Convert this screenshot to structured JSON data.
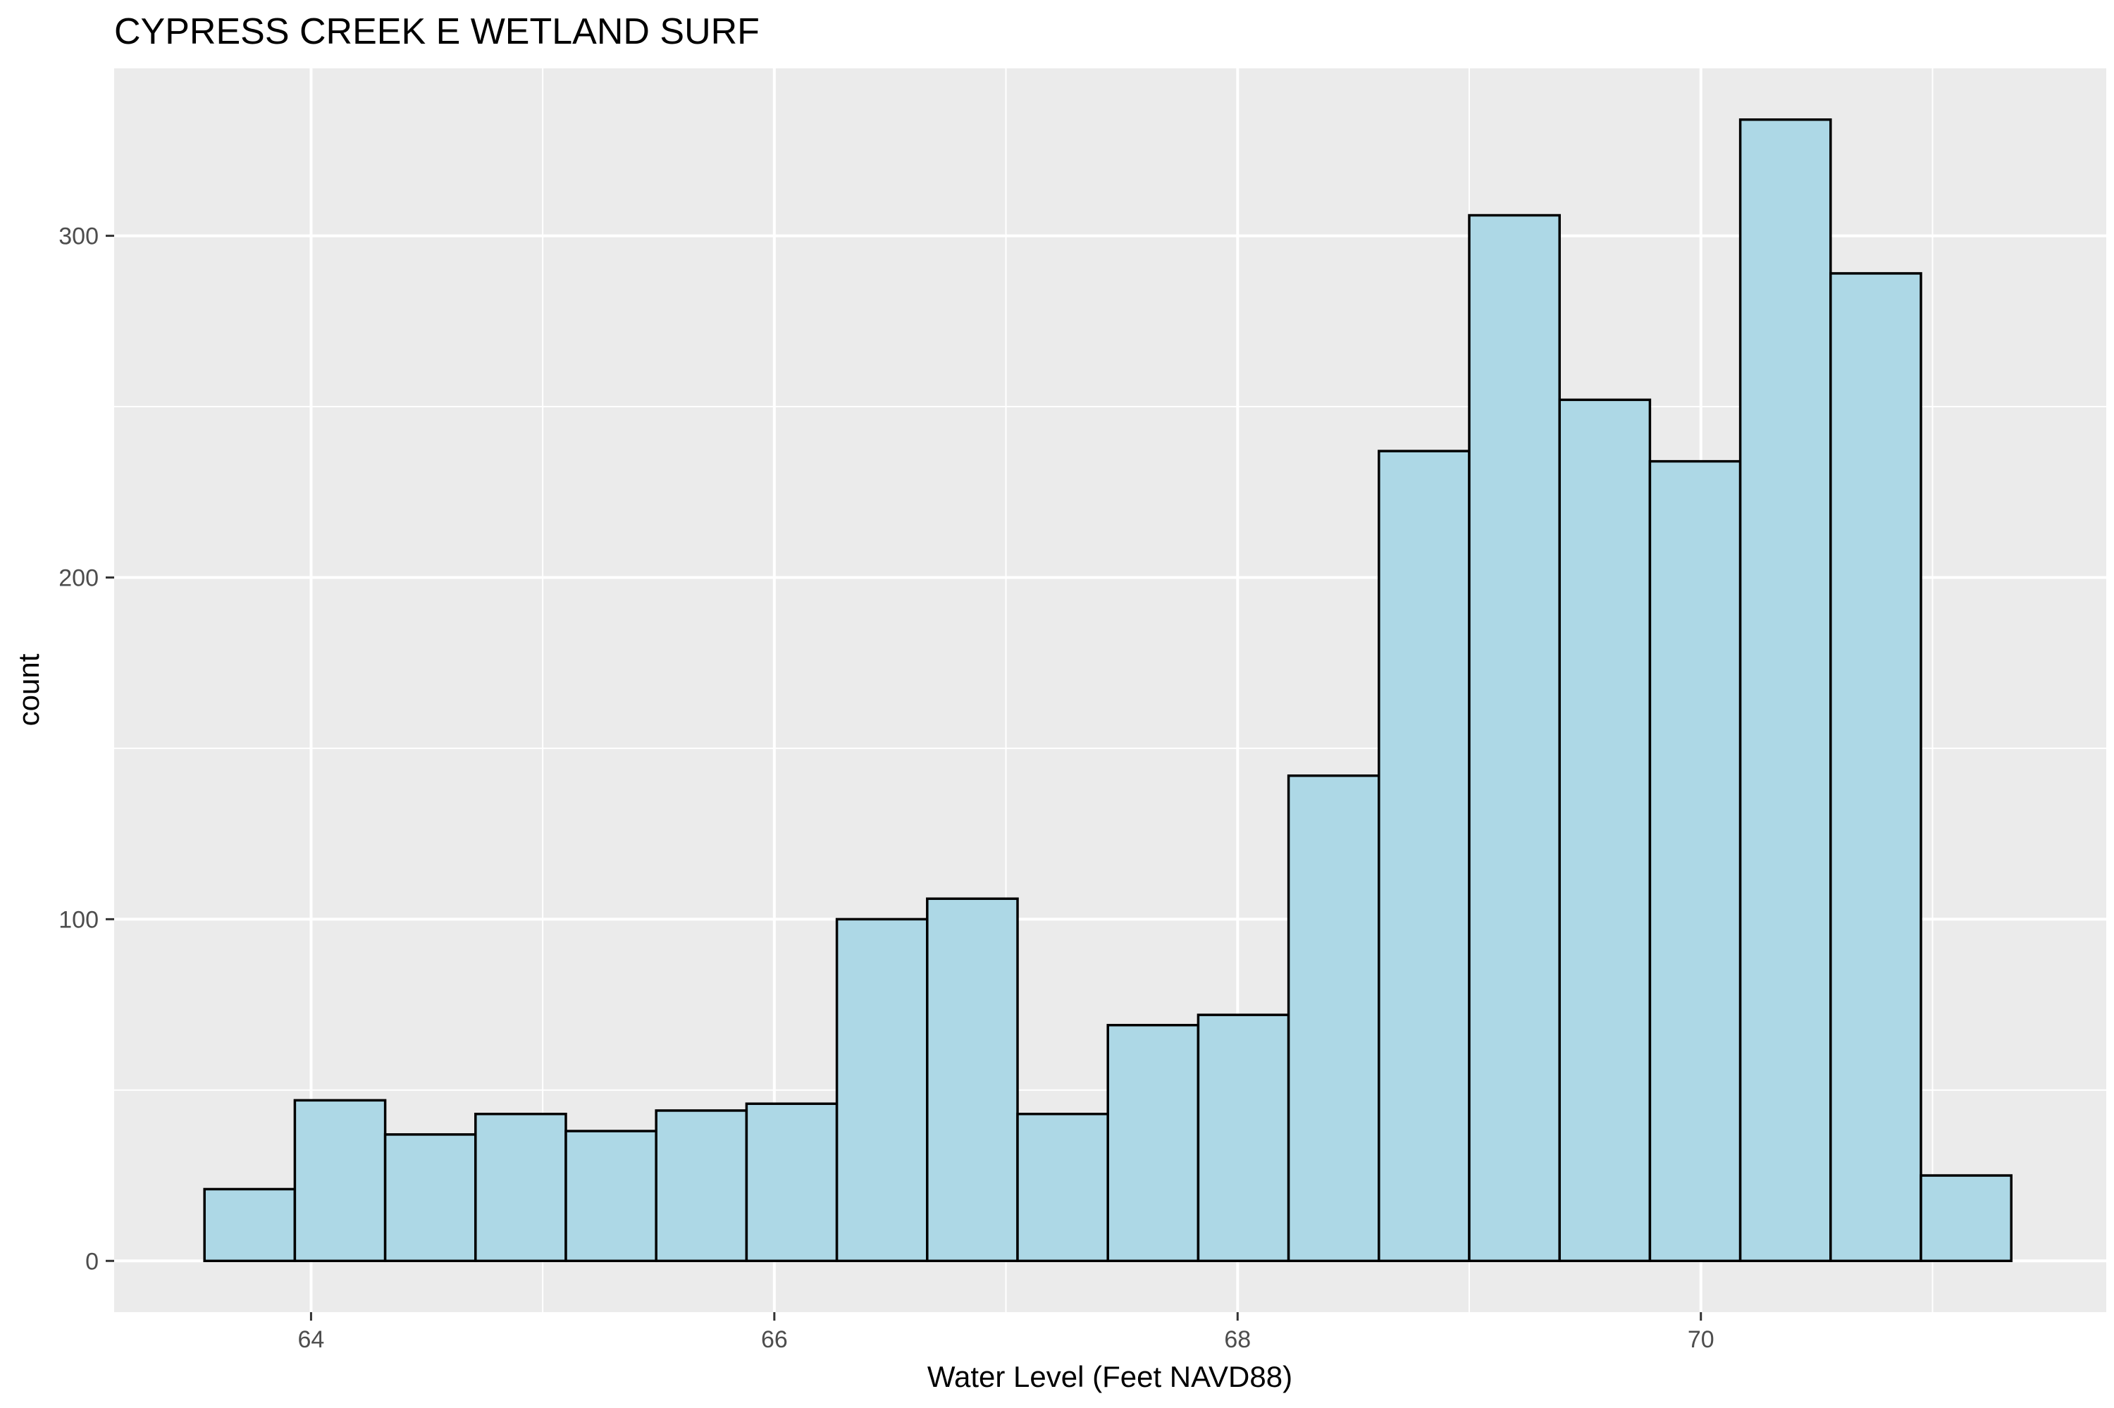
{
  "chart_data": {
    "type": "bar",
    "subtype": "histogram",
    "title": "CYPRESS CREEK E WETLAND SURF",
    "xlabel": "Water Level (Feet NAVD88)",
    "ylabel": "count",
    "xlim": [
      63.15,
      71.75
    ],
    "ylim": [
      -15,
      349
    ],
    "xticks": [
      64,
      66,
      68,
      70
    ],
    "yticks": [
      0,
      100,
      200,
      300
    ],
    "x_minor_ticks": [
      65,
      67,
      69,
      71
    ],
    "y_minor_ticks": [
      50,
      150,
      250
    ],
    "grid": true,
    "bar_fill": "#add8e6",
    "bar_stroke": "#000000",
    "panel_background": "#ebebeb",
    "grid_color": "#ffffff",
    "bins": [
      {
        "x0": 63.54,
        "x1": 63.93,
        "count": 21
      },
      {
        "x0": 63.93,
        "x1": 64.32,
        "count": 47
      },
      {
        "x0": 64.32,
        "x1": 64.71,
        "count": 37
      },
      {
        "x0": 64.71,
        "x1": 65.1,
        "count": 43
      },
      {
        "x0": 65.1,
        "x1": 65.49,
        "count": 38
      },
      {
        "x0": 65.49,
        "x1": 65.88,
        "count": 44
      },
      {
        "x0": 65.88,
        "x1": 66.27,
        "count": 46
      },
      {
        "x0": 66.27,
        "x1": 66.66,
        "count": 100
      },
      {
        "x0": 66.66,
        "x1": 67.05,
        "count": 106
      },
      {
        "x0": 67.05,
        "x1": 67.44,
        "count": 43
      },
      {
        "x0": 67.44,
        "x1": 67.83,
        "count": 69
      },
      {
        "x0": 67.83,
        "x1": 68.22,
        "count": 72
      },
      {
        "x0": 68.22,
        "x1": 68.61,
        "count": 142
      },
      {
        "x0": 68.61,
        "x1": 69.0,
        "count": 237
      },
      {
        "x0": 69.0,
        "x1": 69.39,
        "count": 306
      },
      {
        "x0": 69.39,
        "x1": 69.78,
        "count": 252
      },
      {
        "x0": 69.78,
        "x1": 70.17,
        "count": 234
      },
      {
        "x0": 70.17,
        "x1": 70.56,
        "count": 334
      },
      {
        "x0": 70.56,
        "x1": 70.95,
        "count": 289
      },
      {
        "x0": 70.95,
        "x1": 71.34,
        "count": 25
      }
    ]
  }
}
